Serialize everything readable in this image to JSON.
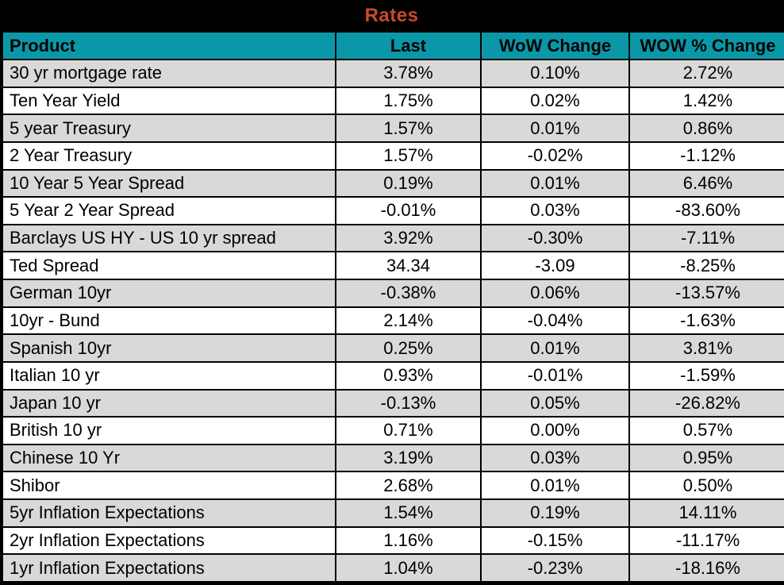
{
  "title": "Rates",
  "colors": {
    "title_bg": "#000000",
    "title_text": "#C84B2C",
    "header_bg": "#0A98A8",
    "header_text": "#000000",
    "row_shaded": "#D9D9D9",
    "row_plain": "#FFFFFF",
    "grid_border": "#000000"
  },
  "columns": [
    "Product",
    "Last",
    "WoW Change",
    "WOW % Change"
  ],
  "chart_data": {
    "type": "table",
    "title": "Rates",
    "categories": [
      "Product",
      "Last",
      "WoW Change",
      "WOW % Change"
    ],
    "rows": [
      {
        "product": "30 yr mortgage rate",
        "last": "3.78%",
        "wow_change": "0.10%",
        "wow_pct_change": "2.72%"
      },
      {
        "product": "Ten Year Yield",
        "last": "1.75%",
        "wow_change": "0.02%",
        "wow_pct_change": "1.42%"
      },
      {
        "product": "5 year Treasury",
        "last": "1.57%",
        "wow_change": "0.01%",
        "wow_pct_change": "0.86%"
      },
      {
        "product": "2 Year Treasury",
        "last": "1.57%",
        "wow_change": "-0.02%",
        "wow_pct_change": "-1.12%"
      },
      {
        "product": "10 Year 5 Year Spread",
        "last": "0.19%",
        "wow_change": "0.01%",
        "wow_pct_change": "6.46%"
      },
      {
        "product": "5 Year 2 Year Spread",
        "last": "-0.01%",
        "wow_change": "0.03%",
        "wow_pct_change": "-83.60%"
      },
      {
        "product": "Barclays US HY - US 10 yr spread",
        "last": "3.92%",
        "wow_change": "-0.30%",
        "wow_pct_change": "-7.11%"
      },
      {
        "product": "Ted Spread",
        "last": "34.34",
        "wow_change": "-3.09",
        "wow_pct_change": "-8.25%"
      },
      {
        "product": "German 10yr",
        "last": "-0.38%",
        "wow_change": "0.06%",
        "wow_pct_change": "-13.57%"
      },
      {
        "product": "10yr - Bund",
        "last": "2.14%",
        "wow_change": "-0.04%",
        "wow_pct_change": "-1.63%"
      },
      {
        "product": "Spanish 10yr",
        "last": "0.25%",
        "wow_change": "0.01%",
        "wow_pct_change": "3.81%"
      },
      {
        "product": "Italian 10 yr",
        "last": "0.93%",
        "wow_change": "-0.01%",
        "wow_pct_change": "-1.59%"
      },
      {
        "product": "Japan 10 yr",
        "last": "-0.13%",
        "wow_change": "0.05%",
        "wow_pct_change": "-26.82%"
      },
      {
        "product": "British 10 yr",
        "last": "0.71%",
        "wow_change": "0.00%",
        "wow_pct_change": "0.57%"
      },
      {
        "product": "Chinese 10 Yr",
        "last": "3.19%",
        "wow_change": "0.03%",
        "wow_pct_change": "0.95%"
      },
      {
        "product": "Shibor",
        "last": "2.68%",
        "wow_change": "0.01%",
        "wow_pct_change": "0.50%"
      },
      {
        "product": "5yr Inflation Expectations",
        "last": "1.54%",
        "wow_change": "0.19%",
        "wow_pct_change": "14.11%"
      },
      {
        "product": "2yr Inflation Expectations",
        "last": "1.16%",
        "wow_change": "-0.15%",
        "wow_pct_change": "-11.17%"
      },
      {
        "product": "1yr Inflation Expectations",
        "last": "1.04%",
        "wow_change": "-0.23%",
        "wow_pct_change": "-18.16%"
      }
    ]
  }
}
